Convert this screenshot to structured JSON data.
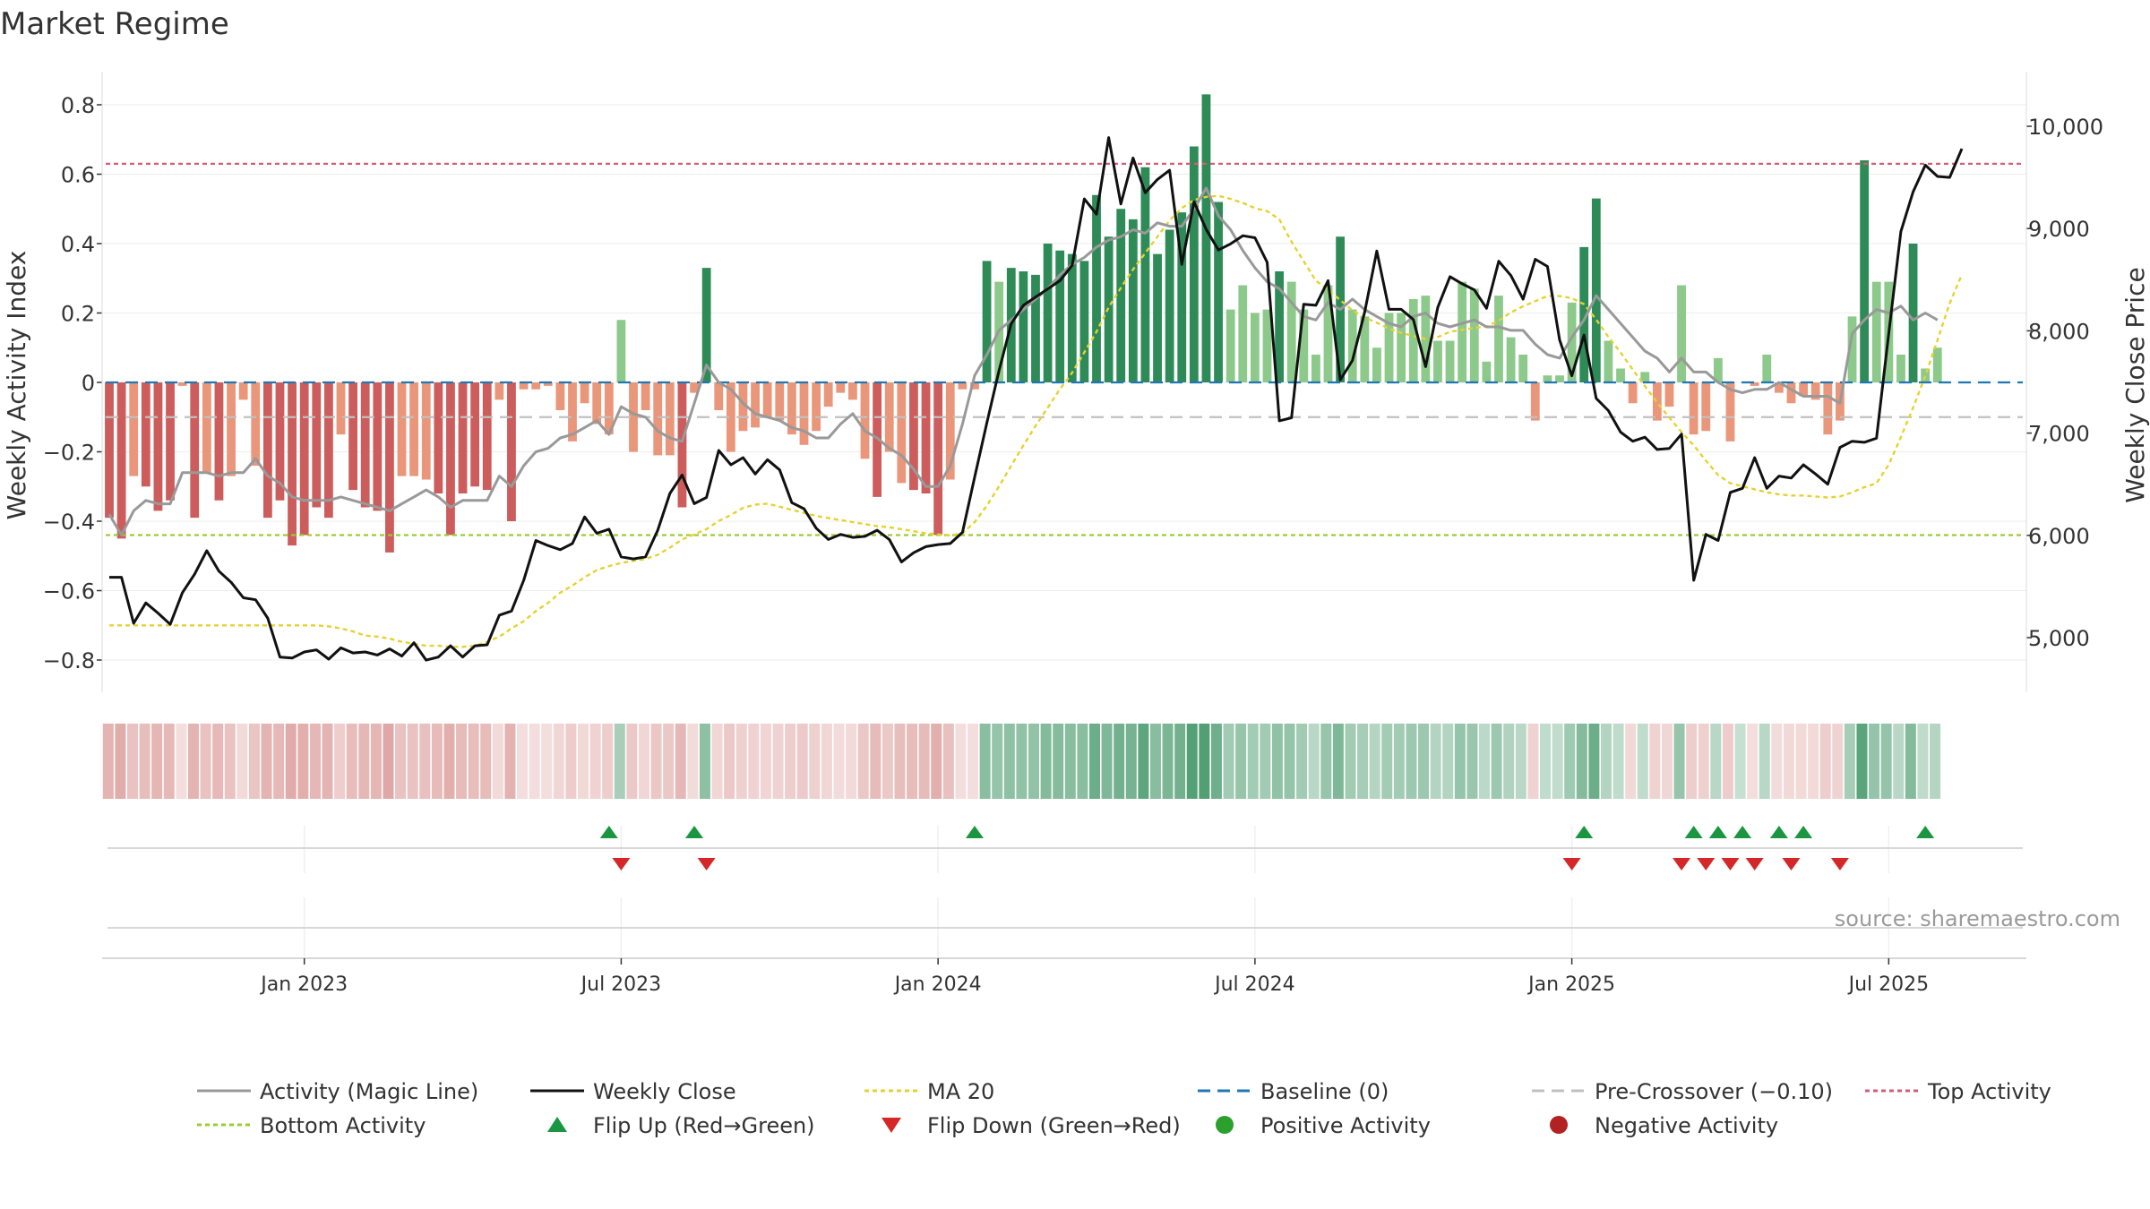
{
  "chart_data": {
    "type": "bar",
    "title": "Market Regime",
    "ylabel": "Weekly Activity Index",
    "y2label": "Weekly Close Price",
    "ylim": [
      -0.9,
      0.9
    ],
    "y2lim": [
      4800,
      10300
    ],
    "yticks": [
      -0.8,
      -0.6,
      -0.4,
      -0.2,
      0,
      0.2,
      0.4,
      0.6,
      0.8
    ],
    "ytick_labels": [
      "−0.8",
      "−0.6",
      "−0.4",
      "−0.2",
      "0",
      "0.2",
      "0.4",
      "0.6",
      "0.8"
    ],
    "y2ticks": [
      5000,
      6000,
      7000,
      8000,
      9000,
      10000
    ],
    "y2tick_labels": [
      "5,000",
      "6,000",
      "7,000",
      "8,000",
      "9,000",
      "10,000"
    ],
    "xticks": [
      {
        "label": "Jan 2023",
        "week": 16
      },
      {
        "label": "Jul 2023",
        "week": 42
      },
      {
        "label": "Jan 2024",
        "week": 68
      },
      {
        "label": "Jul 2024",
        "week": 94
      },
      {
        "label": "Jan 2025",
        "week": 120
      },
      {
        "label": "Jul 2025",
        "week": 146
      }
    ],
    "num_weeks": 158,
    "first_week": "2022-09-16",
    "activity": [
      -0.39,
      -0.45,
      -0.27,
      -0.3,
      -0.37,
      -0.34,
      -0.01,
      -0.39,
      -0.26,
      -0.34,
      -0.27,
      -0.05,
      -0.24,
      -0.39,
      -0.34,
      -0.47,
      -0.44,
      -0.36,
      -0.39,
      -0.15,
      -0.31,
      -0.36,
      -0.37,
      -0.49,
      -0.27,
      -0.27,
      -0.28,
      -0.32,
      -0.44,
      -0.32,
      -0.3,
      -0.31,
      -0.05,
      -0.4,
      -0.02,
      -0.02,
      -0.01,
      -0.08,
      -0.17,
      -0.06,
      -0.12,
      -0.15,
      0.18,
      -0.2,
      -0.08,
      -0.21,
      -0.21,
      -0.36,
      -0.03,
      0.33,
      -0.08,
      -0.2,
      -0.14,
      -0.13,
      -0.1,
      -0.11,
      -0.15,
      -0.18,
      -0.14,
      -0.07,
      -0.03,
      -0.05,
      -0.22,
      -0.33,
      -0.2,
      -0.29,
      -0.31,
      -0.32,
      -0.44,
      -0.28,
      -0.02,
      -0.02,
      0.35,
      0.29,
      0.33,
      0.32,
      0.31,
      0.4,
      0.38,
      0.37,
      0.35,
      0.54,
      0.42,
      0.5,
      0.47,
      0.62,
      0.37,
      0.44,
      0.49,
      0.68,
      0.83,
      0.52,
      0.21,
      0.28,
      0.2,
      0.21,
      0.32,
      0.29,
      0.21,
      0.08,
      0.28,
      0.42,
      0.21,
      0.19,
      0.1,
      0.2,
      0.2,
      0.24,
      0.25,
      0.12,
      0.12,
      0.29,
      0.27,
      0.06,
      0.25,
      0.13,
      0.08,
      -0.11,
      0.02,
      0.02,
      0.23,
      0.39,
      0.53,
      0.12,
      0.04,
      -0.06,
      0.03,
      -0.11,
      -0.07,
      0.28,
      -0.15,
      -0.14,
      0.07,
      -0.17,
      0.0,
      -0.01,
      0.08,
      -0.03,
      -0.06,
      -0.04,
      -0.05,
      -0.15,
      -0.11,
      0.19,
      0.64,
      0.29,
      0.29,
      0.08,
      0.4,
      0.04,
      0.1
    ],
    "weekly_close": [
      5590,
      5590,
      5140,
      5340,
      5240,
      5130,
      5440,
      5620,
      5850,
      5650,
      5540,
      5390,
      5370,
      5190,
      4810,
      4800,
      4860,
      4880,
      4790,
      4900,
      4850,
      4860,
      4830,
      4890,
      4820,
      4950,
      4780,
      4810,
      4920,
      4810,
      4920,
      4930,
      5220,
      5260,
      5560,
      5950,
      5900,
      5860,
      5920,
      6180,
      6020,
      6060,
      5790,
      5770,
      5790,
      6050,
      6410,
      6590,
      6310,
      6370,
      6830,
      6690,
      6760,
      6600,
      6740,
      6640,
      6320,
      6260,
      6070,
      5960,
      6010,
      5980,
      5990,
      6050,
      5960,
      5740,
      5830,
      5890,
      5910,
      5920,
      6030,
      6570,
      7100,
      7610,
      8070,
      8250,
      8330,
      8410,
      8490,
      8640,
      9290,
      9140,
      9890,
      9240,
      9690,
      9350,
      9480,
      9570,
      8650,
      9260,
      8990,
      8790,
      8850,
      8930,
      8910,
      8670,
      7120,
      7150,
      8260,
      8250,
      8490,
      7520,
      7710,
      8180,
      8780,
      8210,
      8210,
      8110,
      7650,
      8230,
      8530,
      8460,
      8400,
      8220,
      8680,
      8540,
      8310,
      8700,
      8630,
      7910,
      7560,
      7960,
      7340,
      7220,
      7010,
      6920,
      6960,
      6840,
      6850,
      6990,
      5560,
      6010,
      5950,
      6420,
      6460,
      6760,
      6460,
      6580,
      6560,
      6690,
      6600,
      6500,
      6860,
      6920,
      6910,
      6950,
      7970,
      8970,
      9360,
      9620,
      9510,
      9500,
      9780
    ],
    "magic_line": [
      -0.38,
      -0.44,
      -0.37,
      -0.34,
      -0.35,
      -0.35,
      -0.26,
      -0.26,
      -0.26,
      -0.27,
      -0.26,
      -0.26,
      -0.22,
      -0.27,
      -0.29,
      -0.33,
      -0.34,
      -0.34,
      -0.34,
      -0.33,
      -0.34,
      -0.35,
      -0.36,
      -0.37,
      -0.35,
      -0.33,
      -0.31,
      -0.33,
      -0.36,
      -0.34,
      -0.34,
      -0.34,
      -0.27,
      -0.3,
      -0.24,
      -0.2,
      -0.19,
      -0.16,
      -0.15,
      -0.13,
      -0.11,
      -0.15,
      -0.07,
      -0.09,
      -0.1,
      -0.14,
      -0.16,
      -0.17,
      -0.06,
      0.05,
      0.0,
      -0.02,
      -0.06,
      -0.09,
      -0.1,
      -0.11,
      -0.13,
      -0.14,
      -0.16,
      -0.16,
      -0.12,
      -0.09,
      -0.14,
      -0.16,
      -0.19,
      -0.21,
      -0.25,
      -0.3,
      -0.3,
      -0.24,
      -0.12,
      0.02,
      0.08,
      0.15,
      0.18,
      0.21,
      0.24,
      0.27,
      0.31,
      0.34,
      0.36,
      0.39,
      0.41,
      0.42,
      0.44,
      0.43,
      0.46,
      0.45,
      0.45,
      0.5,
      0.56,
      0.48,
      0.44,
      0.38,
      0.33,
      0.29,
      0.27,
      0.23,
      0.19,
      0.18,
      0.23,
      0.21,
      0.24,
      0.21,
      0.19,
      0.17,
      0.16,
      0.19,
      0.2,
      0.17,
      0.16,
      0.17,
      0.18,
      0.16,
      0.16,
      0.15,
      0.15,
      0.11,
      0.08,
      0.07,
      0.13,
      0.18,
      0.25,
      0.21,
      0.17,
      0.13,
      0.09,
      0.07,
      0.03,
      0.07,
      0.03,
      0.03,
      0.0,
      -0.02,
      -0.03,
      -0.02,
      -0.02,
      0.0,
      -0.02,
      -0.04,
      -0.04,
      -0.04,
      -0.06,
      0.14,
      0.18,
      0.21,
      0.2,
      0.22,
      0.18,
      0.2,
      0.18
    ],
    "ma20_close": [
      5120,
      5120,
      5120,
      5120,
      5120,
      5120,
      5120,
      5120,
      5120,
      5120,
      5120,
      5120,
      5120,
      5120,
      5120,
      5120,
      5120,
      5120,
      5110,
      5090,
      5060,
      5020,
      5010,
      4990,
      4960,
      4940,
      4920,
      4920,
      4910,
      4910,
      4920,
      4960,
      5010,
      5090,
      5160,
      5260,
      5340,
      5440,
      5510,
      5590,
      5660,
      5700,
      5730,
      5750,
      5770,
      5810,
      5880,
      5960,
      6010,
      6060,
      6140,
      6200,
      6270,
      6300,
      6310,
      6280,
      6250,
      6220,
      6190,
      6170,
      6150,
      6130,
      6110,
      6090,
      6080,
      6060,
      6040,
      6020,
      6010,
      6000,
      6020,
      6130,
      6290,
      6480,
      6680,
      6880,
      7070,
      7250,
      7430,
      7590,
      7790,
      7990,
      8230,
      8420,
      8600,
      8760,
      8920,
      9080,
      9200,
      9280,
      9310,
      9320,
      9290,
      9250,
      9200,
      9170,
      9090,
      8870,
      8680,
      8490,
      8400,
      8300,
      8200,
      8130,
      8080,
      8020,
      7980,
      7950,
      7920,
      7940,
      7990,
      8010,
      8030,
      8040,
      8100,
      8180,
      8240,
      8290,
      8340,
      8340,
      8320,
      8260,
      8110,
      7940,
      7790,
      7620,
      7460,
      7300,
      7150,
      7010,
      6880,
      6730,
      6590,
      6510,
      6480,
      6450,
      6420,
      6400,
      6390,
      6390,
      6380,
      6370,
      6380,
      6420,
      6470,
      6510,
      6690,
      6960,
      7250,
      7560,
      7910,
      8270,
      8550
    ],
    "flip_up_weeks": [
      41,
      48,
      71,
      121,
      130,
      132,
      134,
      137,
      139,
      149
    ],
    "flip_down_weeks": [
      42,
      49,
      120,
      129,
      131,
      133,
      135,
      138,
      142
    ],
    "top_activity": 0.63,
    "bottom_activity": -0.44,
    "baseline": 0,
    "pre_crossover": -0.1,
    "colors": {
      "positive_strong": "#2e8b57",
      "positive_weak": "#8cc98a",
      "negative_strong": "#cd5c5c",
      "negative_weak": "#e9967a",
      "weekly_close": "#111111",
      "magic_line": "#999999",
      "ma20": "#e6d22e",
      "baseline": "#1f77b4",
      "pre_crossover": "#c0c0c0",
      "top_activity": "#d65c75",
      "bottom_activity": "#9acd32",
      "flip_up": "#1a9641",
      "flip_down": "#d62728",
      "positive_dot": "#2ca02c",
      "negative_dot": "#b22222"
    },
    "legend_position": "bottom",
    "legend": [
      {
        "label": "Activity (Magic Line)",
        "kind": "line",
        "color": "#999999",
        "dash": ""
      },
      {
        "label": "Weekly Close",
        "kind": "line",
        "color": "#111111",
        "dash": ""
      },
      {
        "label": "MA 20",
        "kind": "line",
        "color": "#e6d22e",
        "dash": "5,4"
      },
      {
        "label": "Baseline (0)",
        "kind": "line",
        "color": "#1f77b4",
        "dash": "14,8"
      },
      {
        "label": "Pre-Crossover (−0.10)",
        "kind": "line",
        "color": "#c0c0c0",
        "dash": "14,8"
      },
      {
        "label": "Top Activity",
        "kind": "line",
        "color": "#d65c75",
        "dash": "5,4"
      },
      {
        "label": "Bottom Activity",
        "kind": "line",
        "color": "#9acd32",
        "dash": "5,4"
      },
      {
        "label": "Flip Up (Red→Green)",
        "kind": "up",
        "color": "#1a9641",
        "dash": ""
      },
      {
        "label": "Flip Down (Green→Red)",
        "kind": "down",
        "color": "#d62728",
        "dash": ""
      },
      {
        "label": "Positive Activity",
        "kind": "dot",
        "color": "#2ca02c",
        "dash": ""
      },
      {
        "label": "Negative Activity",
        "kind": "dot",
        "color": "#b22222",
        "dash": ""
      }
    ],
    "source": "source: sharemaestro.com"
  }
}
